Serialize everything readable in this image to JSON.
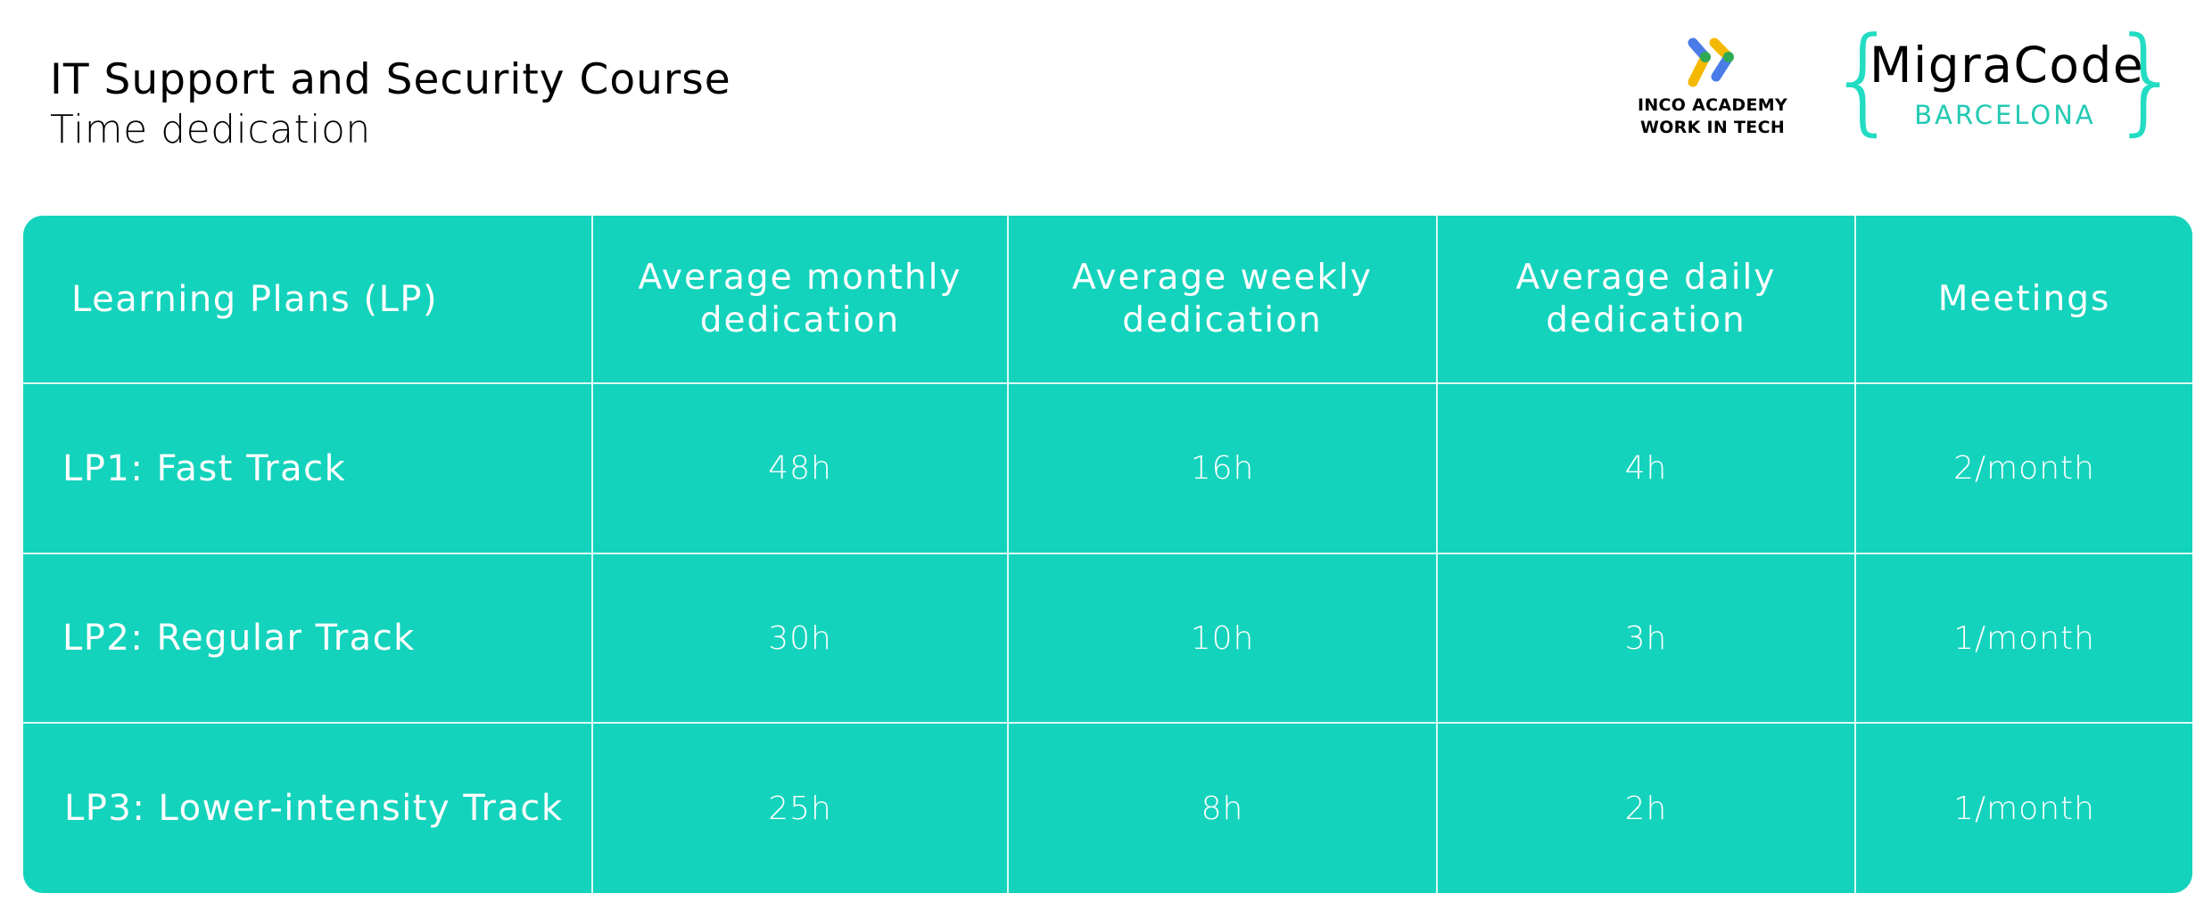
{
  "header": {
    "title": "IT Support and Security Course",
    "subtitle": "Time dedication"
  },
  "logos": {
    "inco": {
      "line1": "INCO ACADEMY",
      "line2": "WORK IN TECH",
      "icon": "inco-chevrons-icon"
    },
    "migracode": {
      "name": "MigraCode",
      "sub": "BARCELONA",
      "brace_left": "{",
      "brace_right": "}",
      "accent": "#22dcc3"
    }
  },
  "table": {
    "background": "#14d3bc",
    "columns": [
      "Learning Plans (LP)",
      "Average monthly dedication",
      "Average weekly dedication",
      "Average daily dedication",
      "Meetings"
    ],
    "rows": [
      {
        "plan": "LP1: Fast Track",
        "monthly": "48h",
        "weekly": "16h",
        "daily": "4h",
        "meetings": "2/month"
      },
      {
        "plan": "LP2: Regular Track",
        "monthly": "30h",
        "weekly": "10h",
        "daily": "3h",
        "meetings": "1/month"
      },
      {
        "plan": "LP3: Lower-intensity Track",
        "monthly": "25h",
        "weekly": "8h",
        "daily": "2h",
        "meetings": "1/month"
      }
    ]
  }
}
